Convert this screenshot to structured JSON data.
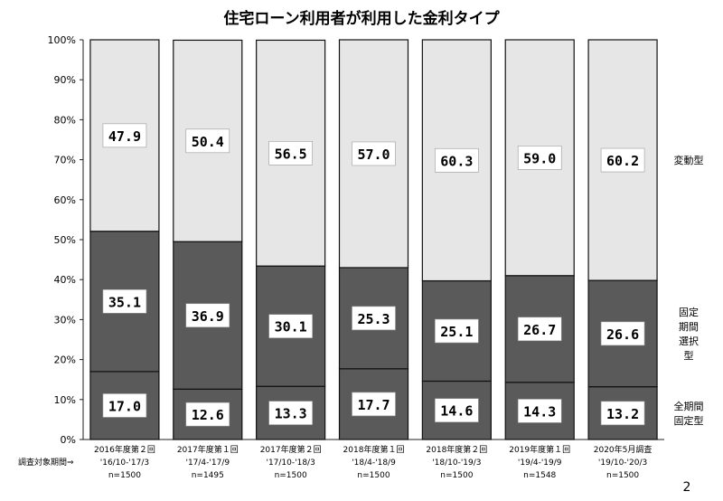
{
  "chart_data": {
    "type": "bar",
    "stacked": true,
    "title": "住宅ローン利用者が利用した金利タイプ",
    "ylim": [
      0,
      100
    ],
    "y_ticks": [
      "0%",
      "10%",
      "20%",
      "30%",
      "40%",
      "50%",
      "60%",
      "70%",
      "80%",
      "90%",
      "100%"
    ],
    "categories": [
      {
        "line1": "2016年度第２回",
        "line2": "'16/10-'17/3",
        "line3": "n=1500"
      },
      {
        "line1": "2017年度第１回",
        "line2": "'17/4-'17/9",
        "line3": "n=1495"
      },
      {
        "line1": "2017年度第２回",
        "line2": "'17/10-'18/3",
        "line3": "n=1500"
      },
      {
        "line1": "2018年度第１回",
        "line2": "'18/4-'18/9",
        "line3": "n=1500"
      },
      {
        "line1": "2018年度第２回",
        "line2": "'18/10-'19/3",
        "line3": "n=1500"
      },
      {
        "line1": "2019年度第１回",
        "line2": "'19/4-'19/9",
        "line3": "n=1548"
      },
      {
        "line1": "2020年5月調査",
        "line2": "'19/10-'20/3",
        "line3": "n=1500"
      }
    ],
    "period_label": "調査対象期間⇒",
    "series": [
      {
        "name": "全期間固定型",
        "name_lines": [
          "全期間",
          "固定型"
        ],
        "values": [
          17.0,
          12.6,
          13.3,
          17.7,
          14.6,
          14.3,
          13.2
        ],
        "labels": [
          "17.0",
          "12.6",
          "13.3",
          "17.7",
          "14.6",
          "14.3",
          "13.2"
        ],
        "color": "#5a5a5a"
      },
      {
        "name": "固定期間選択型",
        "name_lines": [
          "固定",
          "期間",
          "選択",
          "型"
        ],
        "values": [
          35.1,
          36.9,
          30.1,
          25.3,
          25.1,
          26.7,
          26.6
        ],
        "labels": [
          "35.1",
          "36.9",
          "30.1",
          "25.3",
          "25.1",
          "26.7",
          "26.6"
        ],
        "color": "#5a5a5a"
      },
      {
        "name": "変動型",
        "name_lines": [
          "変動型"
        ],
        "values": [
          47.9,
          50.4,
          56.5,
          57.0,
          60.3,
          59.0,
          60.2
        ],
        "labels": [
          "47.9",
          "50.4",
          "56.5",
          "57.0",
          "60.3",
          "59.0",
          "60.2"
        ],
        "color": "#e6e6e6"
      }
    ]
  },
  "page_number": "2"
}
